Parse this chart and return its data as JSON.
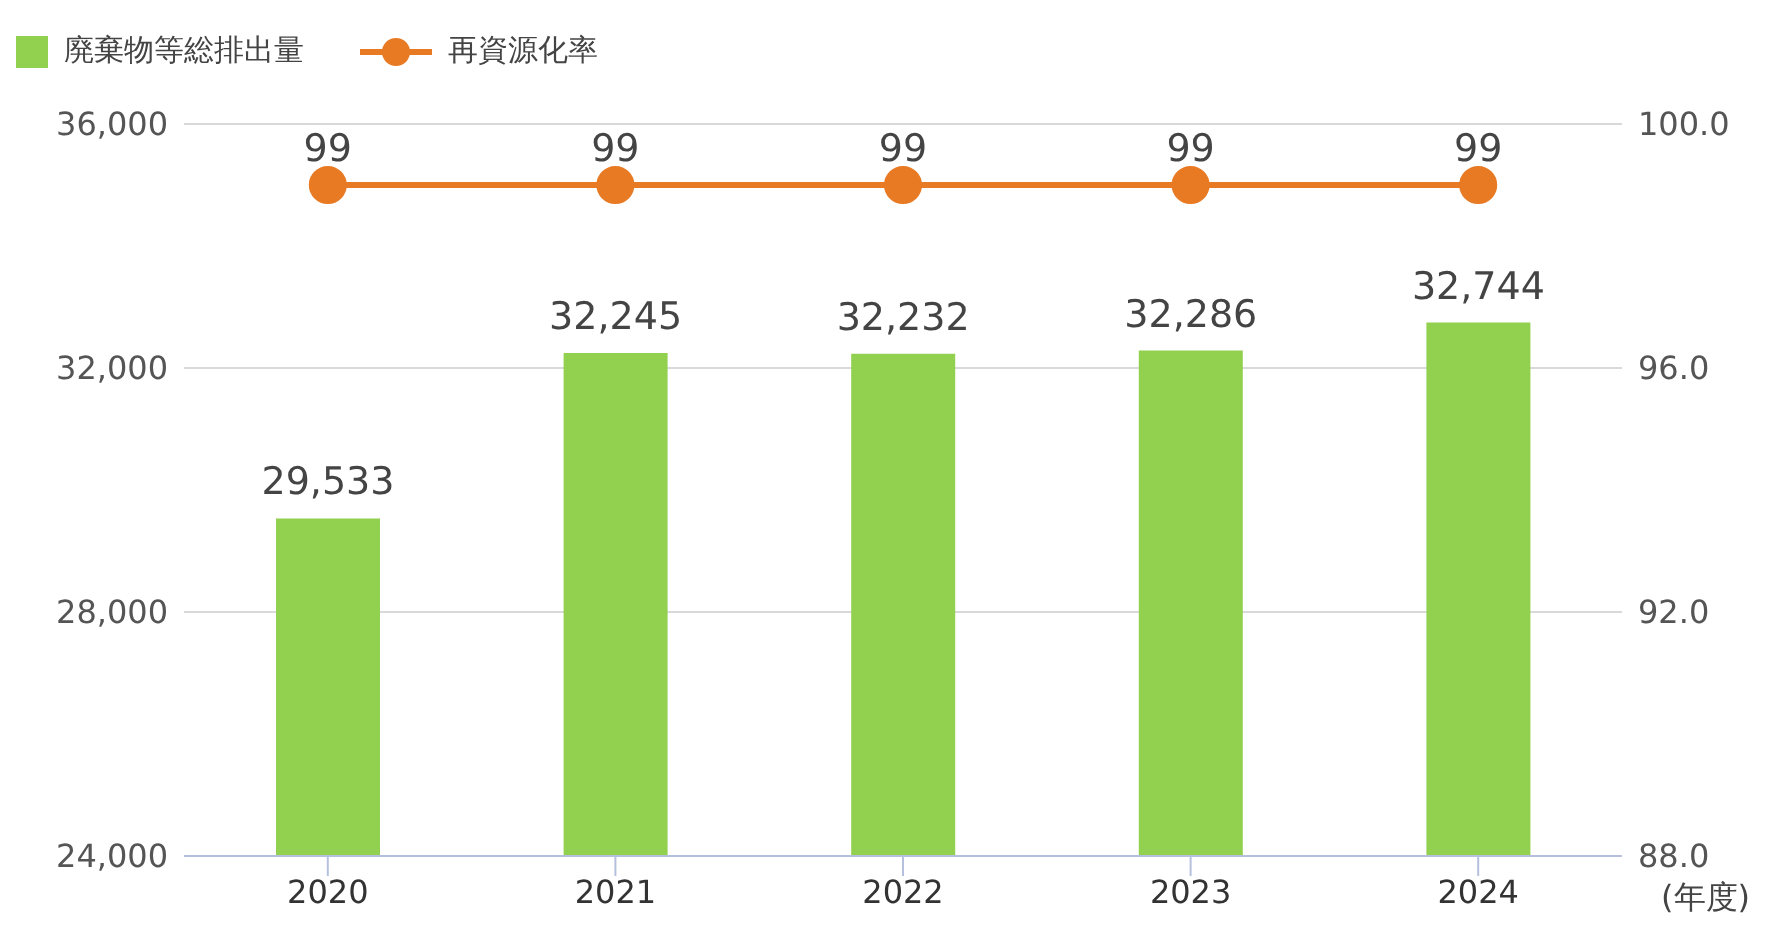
{
  "chart_data": {
    "type": "bar",
    "categories": [
      "2020",
      "2021",
      "2022",
      "2023",
      "2024"
    ],
    "xlabel": "(年度)",
    "series": [
      {
        "name": "廃棄物等総排出量",
        "color": "#92d050",
        "values": [
          29533,
          32245,
          32232,
          32286,
          32744
        ],
        "value_labels": [
          "29,533",
          "32,245",
          "32,232",
          "32,286",
          "32,744"
        ]
      },
      {
        "name": "再資源化率",
        "type": "line",
        "axis": "y2",
        "color": "#e87a24",
        "values": [
          99,
          99,
          99,
          99,
          99
        ],
        "value_labels": [
          "99",
          "99",
          "99",
          "99",
          "99"
        ]
      }
    ],
    "ylim": [
      24000,
      36000
    ],
    "yticks": [
      {
        "value": 24000,
        "label": "24,000"
      },
      {
        "value": 28000,
        "label": "28,000"
      },
      {
        "value": 32000,
        "label": "32,000"
      },
      {
        "value": 36000,
        "label": "36,000"
      }
    ],
    "y2lim": [
      88,
      100
    ],
    "y2ticks": [
      {
        "value": 88,
        "label": "88.0"
      },
      {
        "value": 92,
        "label": "92.0"
      },
      {
        "value": 96,
        "label": "96.0"
      },
      {
        "value": 100,
        "label": "100.0"
      }
    ],
    "grid": "y",
    "legend": "top left",
    "marker": "circle"
  }
}
